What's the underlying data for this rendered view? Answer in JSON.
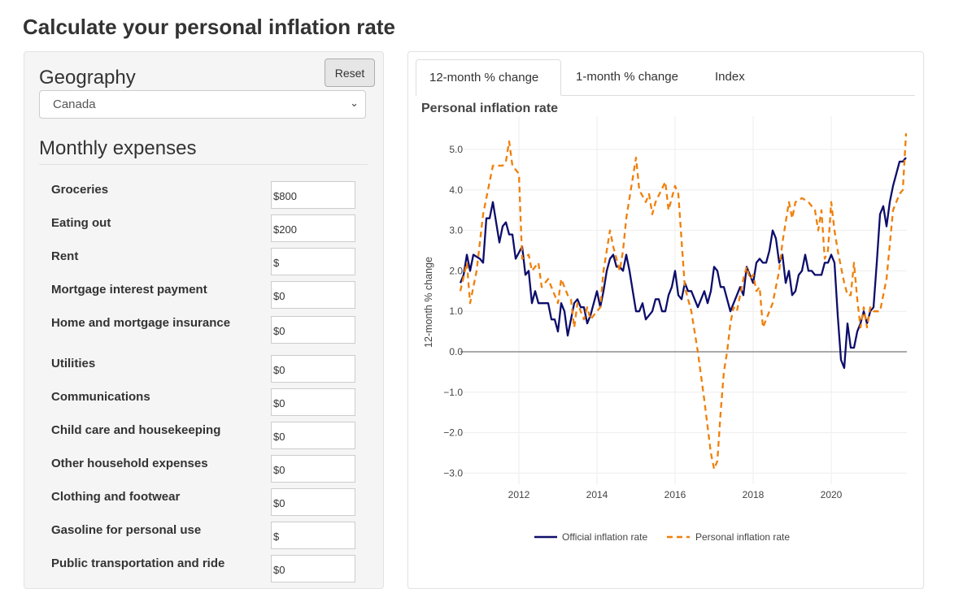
{
  "page_title": "Calculate your personal inflation rate",
  "left": {
    "reset_label": "Reset",
    "geography_label": "Geography",
    "geography_value": "Canada",
    "expenses_label": "Monthly expenses",
    "expenses": [
      {
        "label": "Groceries",
        "value": "$800"
      },
      {
        "label": "Eating out",
        "value": "$200"
      },
      {
        "label": "Rent",
        "value": "$"
      },
      {
        "label": "Mortgage interest payment",
        "value": "$0"
      },
      {
        "label": "Home and mortgage insurance",
        "value": "$0"
      },
      {
        "label": "Utilities",
        "value": "$0"
      },
      {
        "label": "Communications",
        "value": "$0"
      },
      {
        "label": "Child care and housekeeping",
        "value": "$0"
      },
      {
        "label": "Other household expenses",
        "value": "$0"
      },
      {
        "label": "Clothing and footwear",
        "value": "$0"
      },
      {
        "label": "Gasoline for personal use",
        "value": "$"
      },
      {
        "label": "Public transportation and ride",
        "value": "$0"
      }
    ]
  },
  "tabs": [
    {
      "label": "12-month % change",
      "active": true
    },
    {
      "label": "1-month % change",
      "active": false
    },
    {
      "label": "Index",
      "active": false
    }
  ],
  "chart_data": {
    "type": "line",
    "title": "Personal inflation rate",
    "ylabel": "12-month % change",
    "xlabel": "",
    "ylim": [
      -3.25,
      5.8
    ],
    "xlim": [
      "2010-07",
      "2021-12"
    ],
    "yticks": [
      "−3.0",
      "−2.0",
      "−1.0",
      "0.0",
      "1.0",
      "2.0",
      "3.0",
      "4.0",
      "5.0"
    ],
    "ytick_values": [
      -3,
      -2,
      -1,
      0,
      1,
      2,
      3,
      4,
      5
    ],
    "xticks": [
      "2012",
      "2014",
      "2016",
      "2018",
      "2020"
    ],
    "grid": true,
    "legend_position": "bottom",
    "series": [
      {
        "name": "Official inflation rate",
        "color": "#0d0d6b",
        "dash": "solid",
        "points": [
          [
            "2010-07",
            1.7
          ],
          [
            "2010-08",
            1.9
          ],
          [
            "2010-09",
            2.4
          ],
          [
            "2010-10",
            2.0
          ],
          [
            "2010-11",
            2.4
          ],
          [
            "2011-01",
            2.3
          ],
          [
            "2011-02",
            2.2
          ],
          [
            "2011-03",
            3.3
          ],
          [
            "2011-04",
            3.3
          ],
          [
            "2011-05",
            3.7
          ],
          [
            "2011-07",
            2.7
          ],
          [
            "2011-08",
            3.1
          ],
          [
            "2011-09",
            3.2
          ],
          [
            "2011-10",
            2.9
          ],
          [
            "2011-11",
            2.9
          ],
          [
            "2011-12",
            2.3
          ],
          [
            "2012-02",
            2.6
          ],
          [
            "2012-03",
            1.9
          ],
          [
            "2012-04",
            2.0
          ],
          [
            "2012-05",
            1.2
          ],
          [
            "2012-06",
            1.5
          ],
          [
            "2012-07",
            1.2
          ],
          [
            "2012-10",
            1.2
          ],
          [
            "2012-11",
            0.8
          ],
          [
            "2012-12",
            0.8
          ],
          [
            "2013-01",
            0.5
          ],
          [
            "2013-02",
            1.2
          ],
          [
            "2013-03",
            1.0
          ],
          [
            "2013-04",
            0.4
          ],
          [
            "2013-06",
            1.2
          ],
          [
            "2013-07",
            1.3
          ],
          [
            "2013-08",
            1.1
          ],
          [
            "2013-09",
            1.1
          ],
          [
            "2013-10",
            0.7
          ],
          [
            "2013-11",
            0.9
          ],
          [
            "2013-12",
            1.2
          ],
          [
            "2014-01",
            1.5
          ],
          [
            "2014-02",
            1.1
          ],
          [
            "2014-03",
            1.5
          ],
          [
            "2014-04",
            2.0
          ],
          [
            "2014-05",
            2.3
          ],
          [
            "2014-06",
            2.4
          ],
          [
            "2014-07",
            2.1
          ],
          [
            "2014-08",
            2.1
          ],
          [
            "2014-09",
            2.0
          ],
          [
            "2014-10",
            2.4
          ],
          [
            "2014-11",
            2.0
          ],
          [
            "2015-01",
            1.0
          ],
          [
            "2015-02",
            1.0
          ],
          [
            "2015-03",
            1.2
          ],
          [
            "2015-04",
            0.8
          ],
          [
            "2015-06",
            1.0
          ],
          [
            "2015-07",
            1.3
          ],
          [
            "2015-08",
            1.3
          ],
          [
            "2015-09",
            1.0
          ],
          [
            "2015-10",
            1.0
          ],
          [
            "2015-11",
            1.4
          ],
          [
            "2015-12",
            1.6
          ],
          [
            "2016-01",
            2.0
          ],
          [
            "2016-02",
            1.4
          ],
          [
            "2016-03",
            1.3
          ],
          [
            "2016-04",
            1.7
          ],
          [
            "2016-05",
            1.5
          ],
          [
            "2016-06",
            1.5
          ],
          [
            "2016-08",
            1.1
          ],
          [
            "2016-09",
            1.3
          ],
          [
            "2016-10",
            1.5
          ],
          [
            "2016-11",
            1.2
          ],
          [
            "2016-12",
            1.5
          ],
          [
            "2017-01",
            2.1
          ],
          [
            "2017-02",
            2.0
          ],
          [
            "2017-03",
            1.6
          ],
          [
            "2017-04",
            1.6
          ],
          [
            "2017-06",
            1.0
          ],
          [
            "2017-08",
            1.4
          ],
          [
            "2017-09",
            1.6
          ],
          [
            "2017-10",
            1.4
          ],
          [
            "2017-11",
            2.1
          ],
          [
            "2017-12",
            1.9
          ],
          [
            "2018-01",
            1.7
          ],
          [
            "2018-02",
            2.2
          ],
          [
            "2018-03",
            2.3
          ],
          [
            "2018-04",
            2.2
          ],
          [
            "2018-05",
            2.2
          ],
          [
            "2018-06",
            2.5
          ],
          [
            "2018-07",
            3.0
          ],
          [
            "2018-08",
            2.8
          ],
          [
            "2018-09",
            2.2
          ],
          [
            "2018-10",
            2.4
          ],
          [
            "2018-11",
            1.7
          ],
          [
            "2018-12",
            2.0
          ],
          [
            "2019-01",
            1.4
          ],
          [
            "2019-02",
            1.5
          ],
          [
            "2019-03",
            1.9
          ],
          [
            "2019-04",
            2.0
          ],
          [
            "2019-05",
            2.4
          ],
          [
            "2019-06",
            2.0
          ],
          [
            "2019-07",
            2.0
          ],
          [
            "2019-08",
            1.9
          ],
          [
            "2019-10",
            1.9
          ],
          [
            "2019-11",
            2.2
          ],
          [
            "2019-12",
            2.2
          ],
          [
            "2020-01",
            2.4
          ],
          [
            "2020-02",
            2.2
          ],
          [
            "2020-03",
            0.9
          ],
          [
            "2020-04",
            -0.2
          ],
          [
            "2020-05",
            -0.4
          ],
          [
            "2020-06",
            0.7
          ],
          [
            "2020-07",
            0.1
          ],
          [
            "2020-08",
            0.1
          ],
          [
            "2020-09",
            0.5
          ],
          [
            "2020-10",
            0.7
          ],
          [
            "2020-11",
            1.0
          ],
          [
            "2020-12",
            0.7
          ],
          [
            "2021-01",
            1.0
          ],
          [
            "2021-02",
            1.1
          ],
          [
            "2021-03",
            2.2
          ],
          [
            "2021-04",
            3.4
          ],
          [
            "2021-05",
            3.6
          ],
          [
            "2021-06",
            3.1
          ],
          [
            "2021-07",
            3.7
          ],
          [
            "2021-08",
            4.1
          ],
          [
            "2021-09",
            4.4
          ],
          [
            "2021-10",
            4.7
          ],
          [
            "2021-11",
            4.7
          ],
          [
            "2021-12",
            4.8
          ]
        ]
      },
      {
        "name": "Personal inflation rate",
        "color": "#f07f09",
        "dash": "dashed",
        "points": [
          [
            "2010-07",
            1.5
          ],
          [
            "2010-09",
            2.2
          ],
          [
            "2010-10",
            1.2
          ],
          [
            "2010-12",
            2.0
          ],
          [
            "2011-02",
            3.4
          ],
          [
            "2011-04",
            4.2
          ],
          [
            "2011-05",
            4.6
          ],
          [
            "2011-08",
            4.6
          ],
          [
            "2011-09",
            4.7
          ],
          [
            "2011-10",
            5.2
          ],
          [
            "2011-11",
            4.6
          ],
          [
            "2011-12",
            4.5
          ],
          [
            "2012-01",
            4.4
          ],
          [
            "2012-02",
            2.3
          ],
          [
            "2012-04",
            2.4
          ],
          [
            "2012-05",
            2.0
          ],
          [
            "2012-07",
            2.2
          ],
          [
            "2012-08",
            1.6
          ],
          [
            "2012-10",
            1.8
          ],
          [
            "2013-01",
            1.2
          ],
          [
            "2013-02",
            1.8
          ],
          [
            "2013-04",
            1.4
          ],
          [
            "2013-05",
            1.3
          ],
          [
            "2013-06",
            0.6
          ],
          [
            "2013-07",
            1.2
          ],
          [
            "2013-09",
            0.8
          ],
          [
            "2013-10",
            1.1
          ],
          [
            "2013-11",
            0.8
          ],
          [
            "2014-02",
            1.1
          ],
          [
            "2014-03",
            2.0
          ],
          [
            "2014-05",
            3.0
          ],
          [
            "2014-06",
            2.6
          ],
          [
            "2014-08",
            2.0
          ],
          [
            "2014-09",
            2.5
          ],
          [
            "2014-10",
            3.3
          ],
          [
            "2015-01",
            4.8
          ],
          [
            "2015-02",
            4.0
          ],
          [
            "2015-04",
            3.7
          ],
          [
            "2015-05",
            3.9
          ],
          [
            "2015-06",
            3.4
          ],
          [
            "2015-07",
            3.7
          ],
          [
            "2015-10",
            4.2
          ],
          [
            "2015-11",
            3.5
          ],
          [
            "2016-01",
            4.1
          ],
          [
            "2016-02",
            3.9
          ],
          [
            "2016-04",
            1.6
          ],
          [
            "2016-05",
            1.3
          ],
          [
            "2016-06",
            1.0
          ],
          [
            "2016-08",
            0.0
          ],
          [
            "2016-10",
            -1.2
          ],
          [
            "2016-12",
            -2.5
          ],
          [
            "2017-01",
            -2.9
          ],
          [
            "2017-02",
            -2.7
          ],
          [
            "2017-03",
            -1.5
          ],
          [
            "2017-04",
            -0.5
          ],
          [
            "2017-05",
            0.0
          ],
          [
            "2017-06",
            0.7
          ],
          [
            "2017-07",
            1.1
          ],
          [
            "2017-08",
            1.0
          ],
          [
            "2017-10",
            1.8
          ],
          [
            "2017-11",
            2.1
          ],
          [
            "2017-12",
            1.8
          ],
          [
            "2018-01",
            1.9
          ],
          [
            "2018-02",
            1.5
          ],
          [
            "2018-03",
            1.6
          ],
          [
            "2018-04",
            0.6
          ],
          [
            "2018-05",
            0.8
          ],
          [
            "2018-07",
            1.2
          ],
          [
            "2018-09",
            2.0
          ],
          [
            "2018-10",
            2.7
          ],
          [
            "2018-12",
            3.7
          ],
          [
            "2019-01",
            3.3
          ],
          [
            "2019-02",
            3.7
          ],
          [
            "2019-04",
            3.8
          ],
          [
            "2019-06",
            3.7
          ],
          [
            "2019-08",
            3.5
          ],
          [
            "2019-09",
            3.0
          ],
          [
            "2019-10",
            3.5
          ],
          [
            "2019-11",
            2.3
          ],
          [
            "2019-12",
            2.5
          ],
          [
            "2020-01",
            3.7
          ],
          [
            "2020-02",
            3.0
          ],
          [
            "2020-03",
            2.5
          ],
          [
            "2020-05",
            1.7
          ],
          [
            "2020-06",
            1.4
          ],
          [
            "2020-07",
            1.4
          ],
          [
            "2020-08",
            2.2
          ],
          [
            "2020-09",
            1.3
          ],
          [
            "2020-10",
            0.6
          ],
          [
            "2020-11",
            1.1
          ],
          [
            "2020-12",
            0.6
          ],
          [
            "2021-01",
            1.1
          ],
          [
            "2021-02",
            1.0
          ],
          [
            "2021-04",
            1.0
          ],
          [
            "2021-06",
            1.8
          ],
          [
            "2021-08",
            3.5
          ],
          [
            "2021-10",
            3.9
          ],
          [
            "2021-11",
            4.0
          ],
          [
            "2021-12",
            5.4
          ]
        ]
      }
    ]
  }
}
